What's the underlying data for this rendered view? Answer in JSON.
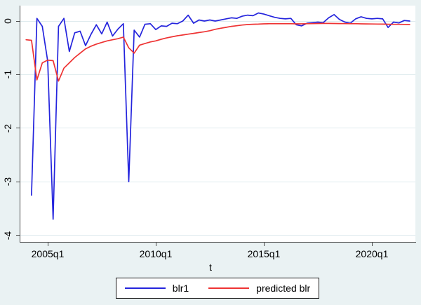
{
  "figure": {
    "background_color": "#eaf2f3",
    "plot_background_color": "#ffffff",
    "grid_color": "#dfebee",
    "axis_color": "#4a4a4a",
    "legend_border_color": "#1a1a1a"
  },
  "chart_data": {
    "type": "line",
    "title": "",
    "xlabel": "t",
    "ylabel": "",
    "x_unit": "quarter",
    "x_start": "2004q1",
    "x_end": "2021q4",
    "ylim": [
      -4.12,
      0.29
    ],
    "grid": true,
    "legend_position": "bottom",
    "y_ticks": [
      {
        "label": "0",
        "value": 0
      },
      {
        "label": "-1",
        "value": -1
      },
      {
        "label": "-2",
        "value": -2
      },
      {
        "label": "-3",
        "value": -3
      },
      {
        "label": "-4",
        "value": -4
      }
    ],
    "x_ticks": [
      {
        "label": "2005q1",
        "index": 4
      },
      {
        "label": "2010q1",
        "index": 24
      },
      {
        "label": "2015q1",
        "index": 44
      },
      {
        "label": "2020q1",
        "index": 64
      }
    ],
    "series": [
      {
        "name": "blr1",
        "color": "#2424dd",
        "values": [
          null,
          -3.25,
          0.05,
          -0.1,
          -0.75,
          -3.7,
          -0.1,
          0.05,
          -0.57,
          -0.22,
          -0.19,
          -0.46,
          -0.25,
          -0.07,
          -0.24,
          -0.02,
          -0.28,
          -0.15,
          -0.05,
          -3.0,
          -0.17,
          -0.3,
          -0.06,
          -0.05,
          -0.16,
          -0.09,
          -0.1,
          -0.04,
          -0.05,
          0.0,
          0.11,
          -0.04,
          0.02,
          0.0,
          0.02,
          0.0,
          0.02,
          0.04,
          0.06,
          0.05,
          0.09,
          0.11,
          0.1,
          0.15,
          0.13,
          0.1,
          0.07,
          0.05,
          0.04,
          0.05,
          -0.07,
          -0.09,
          -0.04,
          -0.03,
          -0.02,
          -0.03,
          0.06,
          0.12,
          0.03,
          -0.02,
          -0.04,
          0.04,
          0.08,
          0.05,
          0.04,
          0.05,
          0.04,
          -0.12,
          -0.02,
          -0.035,
          0.01,
          0.0
        ]
      },
      {
        "name": "predicted blr",
        "color": "#ee3333",
        "values": [
          -0.35,
          -0.36,
          -1.1,
          -0.78,
          -0.73,
          -0.74,
          -1.12,
          -0.88,
          -0.78,
          -0.68,
          -0.6,
          -0.52,
          -0.47,
          -0.43,
          -0.4,
          -0.37,
          -0.35,
          -0.33,
          -0.3,
          -0.5,
          -0.6,
          -0.45,
          -0.42,
          -0.39,
          -0.37,
          -0.34,
          -0.315,
          -0.295,
          -0.275,
          -0.26,
          -0.245,
          -0.23,
          -0.215,
          -0.2,
          -0.18,
          -0.155,
          -0.135,
          -0.118,
          -0.1,
          -0.088,
          -0.075,
          -0.066,
          -0.06,
          -0.057,
          -0.053,
          -0.05,
          -0.05,
          -0.05,
          -0.05,
          -0.05,
          -0.052,
          -0.053,
          -0.05,
          -0.048,
          -0.046,
          -0.045,
          -0.045,
          -0.046,
          -0.047,
          -0.048,
          -0.05,
          -0.05,
          -0.052,
          -0.054,
          -0.055,
          -0.056,
          -0.058,
          -0.06,
          -0.061,
          -0.062,
          -0.063,
          -0.065
        ]
      }
    ]
  }
}
